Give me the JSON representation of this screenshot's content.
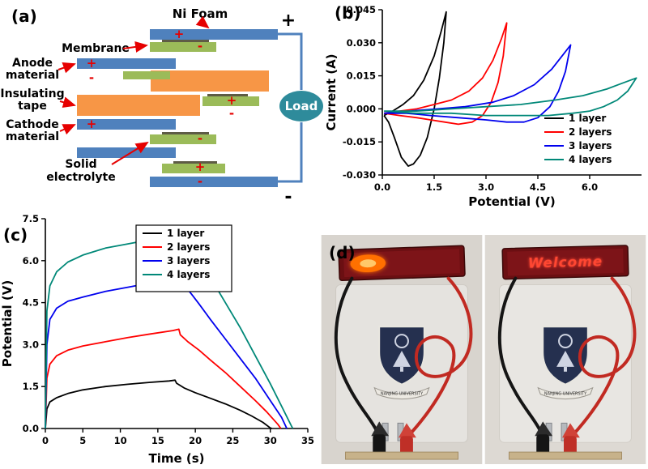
{
  "panels": {
    "a": {
      "label": "(a)",
      "ni_foam": "Ni Foam",
      "membrane": "Membrane",
      "anode_line1": "Anode",
      "anode_line2": "material",
      "tape_line1": "Insulating",
      "tape_line2": "tape",
      "cathode_line1": "Cathode",
      "cathode_line2": "material",
      "electrolyte_line1": "Solid",
      "electrolyte_line2": "electrolyte",
      "load": "Load",
      "plus": "+",
      "minus": "-",
      "terminal_plus": "+",
      "terminal_minus": "-",
      "colors": {
        "collector": "#4f81bd",
        "electrode": "#9bbb59",
        "separator": "#5e5c45",
        "tape": "#f79646",
        "load": "#2e8b9b",
        "accent": "#e60000"
      }
    },
    "b": {
      "label": "(b)"
    },
    "c": {
      "label": "(c)"
    },
    "d": {
      "label": "(d)",
      "display_text": "Welcome",
      "logo_text": "NANJING UNIVERSITY"
    }
  },
  "chart_data": [
    {
      "type": "line",
      "panel": "b",
      "title": "",
      "xlabel": "Potential (V)",
      "ylabel": "Current (A)",
      "xlim": [
        0,
        7.5
      ],
      "ylim": [
        -0.03,
        0.045
      ],
      "xticks": [
        0,
        1.5,
        3,
        4.5,
        6
      ],
      "xtick_labels": [
        "0.0",
        "1.5",
        "3.0",
        "4.5",
        "6.0"
      ],
      "yticks": [
        -0.03,
        -0.015,
        0,
        0.015,
        0.03,
        0.045
      ],
      "ytick_labels": [
        "-0.030",
        "-0.015",
        "0.000",
        "0.015",
        "0.030",
        "0.045"
      ],
      "grid": false,
      "legend": {
        "position": "inside-right",
        "border": false
      },
      "series": [
        {
          "name": "1 layer",
          "color": "#000000",
          "points": [
            [
              0.05,
              -0.003
            ],
            [
              0.3,
              -0.001
            ],
            [
              0.6,
              0.002
            ],
            [
              0.9,
              0.006
            ],
            [
              1.2,
              0.013
            ],
            [
              1.5,
              0.024
            ],
            [
              1.7,
              0.035
            ],
            [
              1.85,
              0.044
            ],
            [
              1.78,
              0.03
            ],
            [
              1.65,
              0.014
            ],
            [
              1.5,
              0.0
            ],
            [
              1.3,
              -0.013
            ],
            [
              1.1,
              -0.021
            ],
            [
              0.9,
              -0.025
            ],
            [
              0.75,
              -0.026
            ],
            [
              0.55,
              -0.022
            ],
            [
              0.35,
              -0.013
            ],
            [
              0.18,
              -0.006
            ],
            [
              0.05,
              -0.003
            ]
          ]
        },
        {
          "name": "2 layers",
          "color": "#ff0000",
          "points": [
            [
              0.05,
              -0.002
            ],
            [
              0.5,
              -0.001
            ],
            [
              1,
              0.0
            ],
            [
              1.5,
              0.002
            ],
            [
              2,
              0.004
            ],
            [
              2.5,
              0.008
            ],
            [
              2.9,
              0.014
            ],
            [
              3.2,
              0.022
            ],
            [
              3.45,
              0.032
            ],
            [
              3.6,
              0.039
            ],
            [
              3.5,
              0.024
            ],
            [
              3.35,
              0.012
            ],
            [
              3.15,
              0.003
            ],
            [
              2.9,
              -0.003
            ],
            [
              2.6,
              -0.006
            ],
            [
              2.2,
              -0.007
            ],
            [
              1.8,
              -0.006
            ],
            [
              1.4,
              -0.005
            ],
            [
              1,
              -0.004
            ],
            [
              0.5,
              -0.003
            ],
            [
              0.05,
              -0.002
            ]
          ]
        },
        {
          "name": "3 layers",
          "color": "#0000ee",
          "points": [
            [
              0.05,
              -0.002
            ],
            [
              0.8,
              -0.001
            ],
            [
              1.6,
              0.0
            ],
            [
              2.4,
              0.001
            ],
            [
              3.2,
              0.003
            ],
            [
              3.8,
              0.006
            ],
            [
              4.4,
              0.011
            ],
            [
              4.9,
              0.018
            ],
            [
              5.25,
              0.025
            ],
            [
              5.45,
              0.029
            ],
            [
              5.3,
              0.017
            ],
            [
              5.1,
              0.008
            ],
            [
              4.85,
              0.001
            ],
            [
              4.5,
              -0.004
            ],
            [
              4.1,
              -0.006
            ],
            [
              3.6,
              -0.006
            ],
            [
              3,
              -0.005
            ],
            [
              2.2,
              -0.004
            ],
            [
              1.4,
              -0.003
            ],
            [
              0.7,
              -0.002
            ],
            [
              0.05,
              -0.002
            ]
          ]
        },
        {
          "name": "4 layers",
          "color": "#008878",
          "points": [
            [
              0.05,
              -0.001
            ],
            [
              1,
              -0.001
            ],
            [
              2,
              0.0
            ],
            [
              3,
              0.001
            ],
            [
              4,
              0.002
            ],
            [
              5,
              0.004
            ],
            [
              5.8,
              0.006
            ],
            [
              6.5,
              0.009
            ],
            [
              7,
              0.012
            ],
            [
              7.35,
              0.014
            ],
            [
              7.1,
              0.008
            ],
            [
              6.8,
              0.004
            ],
            [
              6.4,
              0.001
            ],
            [
              6,
              -0.001
            ],
            [
              5.5,
              -0.002
            ],
            [
              4.8,
              -0.003
            ],
            [
              4,
              -0.003
            ],
            [
              3,
              -0.003
            ],
            [
              2,
              -0.002
            ],
            [
              1,
              -0.002
            ],
            [
              0.05,
              -0.001
            ]
          ]
        }
      ]
    },
    {
      "type": "line",
      "panel": "c",
      "title": "",
      "xlabel": "Time (s)",
      "ylabel": "Potential (V)",
      "xlim": [
        0,
        35
      ],
      "ylim": [
        0,
        7.5
      ],
      "xticks": [
        0,
        5,
        10,
        15,
        20,
        25,
        30,
        35
      ],
      "xtick_labels": [
        "0",
        "5",
        "10",
        "15",
        "20",
        "25",
        "30",
        "35"
      ],
      "yticks": [
        0,
        1.5,
        3,
        4.5,
        6,
        7.5
      ],
      "ytick_labels": [
        "0.0",
        "1.5",
        "3.0",
        "4.5",
        "6.0",
        "7.5"
      ],
      "grid": false,
      "legend": {
        "position": "top-right",
        "border": true
      },
      "series": [
        {
          "name": "1 layer",
          "color": "#000000",
          "points": [
            [
              0,
              0
            ],
            [
              0.2,
              0.7
            ],
            [
              0.6,
              0.95
            ],
            [
              1.5,
              1.1
            ],
            [
              3,
              1.25
            ],
            [
              5,
              1.38
            ],
            [
              8,
              1.5
            ],
            [
              11,
              1.58
            ],
            [
              14,
              1.65
            ],
            [
              16.5,
              1.7
            ],
            [
              17.3,
              1.73
            ],
            [
              17.5,
              1.62
            ],
            [
              18.5,
              1.45
            ],
            [
              20,
              1.28
            ],
            [
              22,
              1.08
            ],
            [
              24,
              0.88
            ],
            [
              26,
              0.65
            ],
            [
              27.5,
              0.45
            ],
            [
              29,
              0.22
            ],
            [
              30,
              0.02
            ],
            [
              30.2,
              0
            ]
          ]
        },
        {
          "name": "2 layers",
          "color": "#ff0000",
          "points": [
            [
              0,
              0
            ],
            [
              0.2,
              1.8
            ],
            [
              0.6,
              2.3
            ],
            [
              1.5,
              2.6
            ],
            [
              3,
              2.8
            ],
            [
              5,
              2.95
            ],
            [
              8,
              3.1
            ],
            [
              11,
              3.25
            ],
            [
              14,
              3.38
            ],
            [
              17,
              3.5
            ],
            [
              17.8,
              3.55
            ],
            [
              18,
              3.35
            ],
            [
              19,
              3.1
            ],
            [
              20.5,
              2.8
            ],
            [
              22,
              2.45
            ],
            [
              24,
              2.0
            ],
            [
              26,
              1.5
            ],
            [
              28,
              1.0
            ],
            [
              29.5,
              0.6
            ],
            [
              31,
              0.15
            ],
            [
              31.4,
              0
            ]
          ]
        },
        {
          "name": "3 layers",
          "color": "#0000ee",
          "points": [
            [
              0,
              0
            ],
            [
              0.2,
              3.0
            ],
            [
              0.6,
              3.9
            ],
            [
              1.5,
              4.3
            ],
            [
              3,
              4.55
            ],
            [
              5,
              4.7
            ],
            [
              8,
              4.9
            ],
            [
              11,
              5.05
            ],
            [
              14,
              5.2
            ],
            [
              17,
              5.32
            ],
            [
              18.4,
              5.4
            ],
            [
              18.6,
              5.1
            ],
            [
              19.5,
              4.8
            ],
            [
              20.5,
              4.45
            ],
            [
              22,
              3.9
            ],
            [
              24,
              3.2
            ],
            [
              26,
              2.5
            ],
            [
              28,
              1.8
            ],
            [
              30,
              1.0
            ],
            [
              31.5,
              0.4
            ],
            [
              32.2,
              0
            ]
          ]
        },
        {
          "name": "4 layers",
          "color": "#008878",
          "points": [
            [
              0,
              0
            ],
            [
              0.2,
              4.2
            ],
            [
              0.6,
              5.1
            ],
            [
              1.5,
              5.6
            ],
            [
              3,
              5.95
            ],
            [
              5,
              6.2
            ],
            [
              8,
              6.45
            ],
            [
              11,
              6.6
            ],
            [
              14,
              6.75
            ],
            [
              17,
              6.9
            ],
            [
              19.3,
              7.05
            ],
            [
              19.5,
              6.6
            ],
            [
              20.5,
              6.1
            ],
            [
              22,
              5.4
            ],
            [
              24,
              4.5
            ],
            [
              26,
              3.6
            ],
            [
              28,
              2.6
            ],
            [
              30,
              1.6
            ],
            [
              31.5,
              0.8
            ],
            [
              32.8,
              0.1
            ],
            [
              33,
              0
            ]
          ]
        }
      ]
    }
  ]
}
